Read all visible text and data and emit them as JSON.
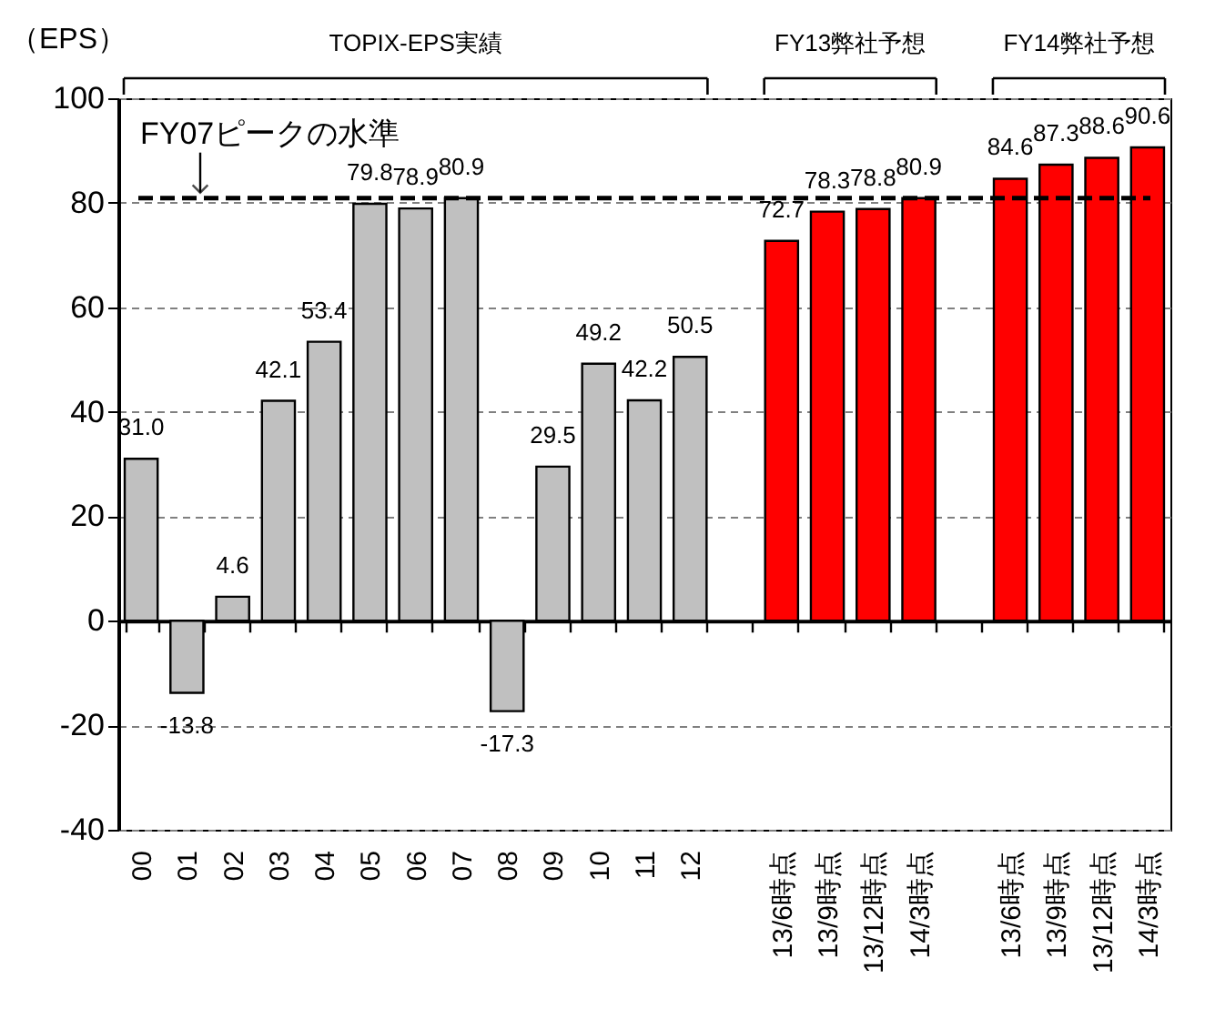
{
  "chart_data": {
    "type": "bar",
    "ylabel": "（EPS）",
    "categories": [
      "00",
      "01",
      "02",
      "03",
      "04",
      "05",
      "06",
      "07",
      "08",
      "09",
      "10",
      "11",
      "12",
      null,
      "13/6時点",
      "13/9時点",
      "13/12時点",
      "14/3時点",
      null,
      "13/6時点",
      "13/9時点",
      "13/12時点",
      "14/3時点"
    ],
    "values": [
      31.0,
      -13.8,
      4.6,
      42.1,
      53.4,
      79.8,
      78.9,
      80.9,
      -17.3,
      29.5,
      49.2,
      42.2,
      50.5,
      null,
      72.7,
      78.3,
      78.8,
      80.9,
      null,
      84.6,
      87.3,
      88.6,
      90.6
    ],
    "value_labels": [
      "31.0",
      "-13.8",
      "4.6",
      "42.1",
      "53.4",
      "79.8",
      "78.9",
      "80.9",
      "-17.3",
      "29.5",
      "49.2",
      "42.2",
      "50.5",
      null,
      "72.7",
      "78.3",
      "78.8",
      "80.9",
      null,
      "84.6",
      "87.3",
      "88.6",
      "90.6"
    ],
    "colors": [
      "#c0c0c0",
      "#c0c0c0",
      "#c0c0c0",
      "#c0c0c0",
      "#c0c0c0",
      "#c0c0c0",
      "#c0c0c0",
      "#c0c0c0",
      "#c0c0c0",
      "#c0c0c0",
      "#c0c0c0",
      "#c0c0c0",
      "#c0c0c0",
      null,
      "#ff0000",
      "#ff0000",
      "#ff0000",
      "#ff0000",
      null,
      "#ff0000",
      "#ff0000",
      "#ff0000",
      "#ff0000"
    ],
    "ylim": [
      -40,
      100
    ],
    "yticks": [
      -40,
      -20,
      0,
      20,
      40,
      60,
      80,
      100
    ],
    "grid": "y",
    "annotations": [
      "TOPIX-EPS実績",
      "FY13弊社予想",
      "FY14弊社予想"
    ],
    "ref_lines": [
      {
        "axis": "y",
        "value": 80.9,
        "label": "FY07ピークの水準",
        "color": "#000000",
        "line_style": "dashed"
      }
    ]
  }
}
